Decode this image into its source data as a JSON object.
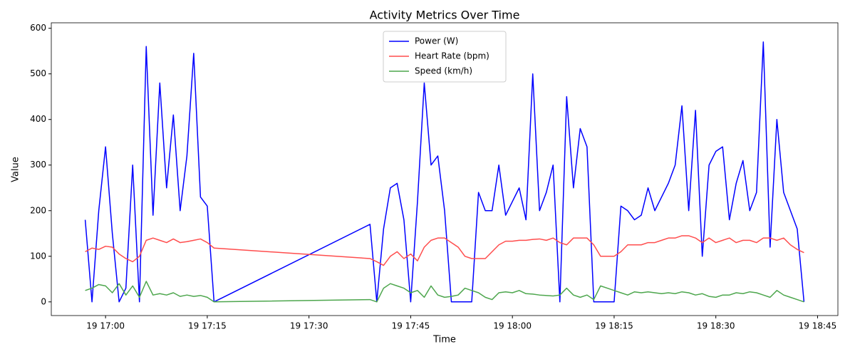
{
  "chart_data": {
    "type": "line",
    "title": "Activity Metrics Over Time",
    "x_label": "Time",
    "y_label": "Value",
    "x": [
      "19 16:57",
      "19 16:58",
      "19 16:59",
      "19 17:00",
      "19 17:01",
      "19 17:02",
      "19 17:03",
      "19 17:04",
      "19 17:05",
      "19 17:06",
      "19 17:07",
      "19 17:08",
      "19 17:09",
      "19 17:10",
      "19 17:11",
      "19 17:12",
      "19 17:13",
      "19 17:14",
      "19 17:15",
      "19 17:16",
      "19 17:39",
      "19 17:40",
      "19 17:41",
      "19 17:42",
      "19 17:43",
      "19 17:44",
      "19 17:45",
      "19 17:46",
      "19 17:47",
      "19 17:48",
      "19 17:49",
      "19 17:50",
      "19 17:51",
      "19 17:52",
      "19 17:53",
      "19 17:54",
      "19 17:55",
      "19 17:56",
      "19 17:57",
      "19 17:58",
      "19 17:59",
      "19 18:00",
      "19 18:01",
      "19 18:02",
      "19 18:03",
      "19 18:04",
      "19 18:05",
      "19 18:06",
      "19 18:07",
      "19 18:08",
      "19 18:09",
      "19 18:10",
      "19 18:11",
      "19 18:12",
      "19 18:13",
      "19 18:14",
      "19 18:15",
      "19 18:16",
      "19 18:17",
      "19 18:18",
      "19 18:19",
      "19 18:20",
      "19 18:21",
      "19 18:22",
      "19 18:23",
      "19 18:24",
      "19 18:25",
      "19 18:26",
      "19 18:27",
      "19 18:28",
      "19 18:29",
      "19 18:30",
      "19 18:31",
      "19 18:32",
      "19 18:33",
      "19 18:34",
      "19 18:35",
      "19 18:36",
      "19 18:37",
      "19 18:38",
      "19 18:39",
      "19 18:40",
      "19 18:41",
      "19 18:42",
      "19 18:43"
    ],
    "series": [
      {
        "name": "Power (W)",
        "color": "#0000ff",
        "values": [
          180,
          0,
          200,
          340,
          150,
          0,
          30,
          300,
          0,
          560,
          190,
          480,
          250,
          410,
          200,
          320,
          545,
          230,
          210,
          0,
          170,
          0,
          160,
          250,
          260,
          180,
          0,
          220,
          480,
          300,
          320,
          200,
          0,
          0,
          0,
          0,
          240,
          200,
          200,
          300,
          190,
          220,
          250,
          180,
          500,
          200,
          240,
          300,
          0,
          450,
          250,
          380,
          340,
          0,
          0,
          0,
          0,
          210,
          200,
          180,
          190,
          250,
          200,
          230,
          260,
          300,
          430,
          200,
          420,
          100,
          300,
          330,
          340,
          180,
          260,
          310,
          200,
          240,
          570,
          120,
          400,
          240,
          200,
          160,
          0
        ]
      },
      {
        "name": "Heart Rate (bpm)",
        "color": "#ff4d4d",
        "values": [
          110,
          118,
          115,
          122,
          120,
          105,
          95,
          88,
          100,
          135,
          140,
          135,
          130,
          138,
          130,
          132,
          135,
          138,
          130,
          118,
          95,
          88,
          80,
          100,
          110,
          95,
          105,
          90,
          120,
          135,
          140,
          140,
          130,
          120,
          100,
          95,
          95,
          95,
          110,
          125,
          133,
          133,
          135,
          135,
          137,
          138,
          135,
          140,
          130,
          125,
          140,
          140,
          140,
          125,
          100,
          100,
          100,
          110,
          125,
          125,
          125,
          130,
          130,
          135,
          140,
          140,
          145,
          145,
          140,
          130,
          140,
          130,
          135,
          140,
          130,
          135,
          135,
          130,
          140,
          140,
          135,
          140,
          125,
          115,
          108
        ]
      },
      {
        "name": "Speed (km/h)",
        "color": "#4da64d",
        "values": [
          25,
          30,
          38,
          35,
          20,
          40,
          15,
          35,
          10,
          45,
          15,
          18,
          15,
          20,
          12,
          15,
          12,
          14,
          10,
          0,
          5,
          0,
          30,
          40,
          35,
          30,
          20,
          25,
          10,
          35,
          15,
          10,
          12,
          15,
          30,
          25,
          20,
          10,
          5,
          20,
          22,
          20,
          25,
          18,
          17,
          15,
          14,
          13,
          15,
          30,
          15,
          10,
          15,
          5,
          35,
          30,
          25,
          20,
          15,
          22,
          20,
          22,
          20,
          18,
          20,
          18,
          22,
          20,
          15,
          18,
          12,
          10,
          15,
          15,
          20,
          18,
          22,
          20,
          15,
          10,
          25,
          15,
          10,
          5,
          0
        ]
      }
    ],
    "xlim": [
      "19 16:52",
      "19 18:48"
    ],
    "xticks": [
      "19 17:00",
      "19 17:15",
      "19 17:30",
      "19 17:45",
      "19 18:00",
      "19 18:15",
      "19 18:30",
      "19 18:45"
    ],
    "ylim": [
      -30,
      612
    ],
    "yticks": [
      0,
      100,
      200,
      300,
      400,
      500,
      600
    ],
    "legend": "upper center"
  }
}
